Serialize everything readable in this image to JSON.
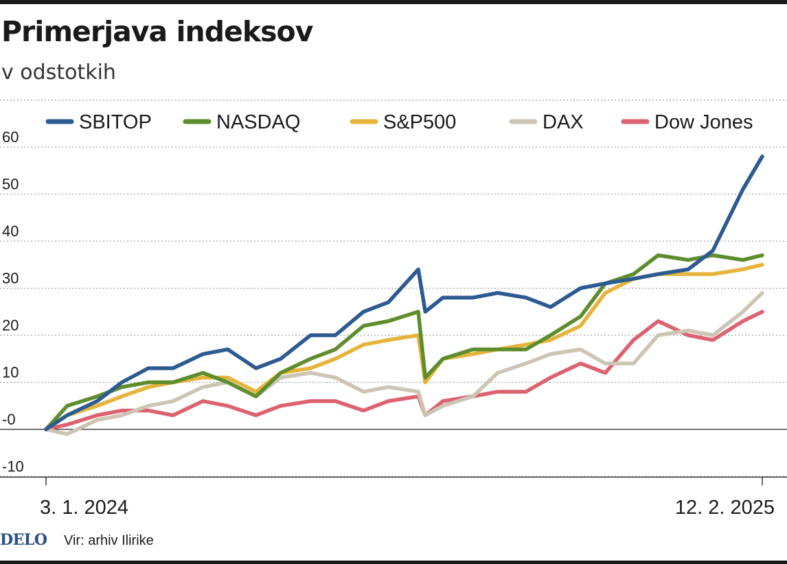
{
  "header": {
    "title": "Primerjava indeksov",
    "subtitle": "v odstotkih"
  },
  "footer": {
    "logo": "DELO",
    "source": "Vir: arhiv Ilirike"
  },
  "colors": {
    "SBITOP": "#2c5a91",
    "NASDAQ": "#5e8d2d",
    "S&P500": "#e6b43a",
    "DAX": "#cdc5b4",
    "Dow Jones": "#dd6270"
  },
  "chart_data": {
    "type": "line",
    "title": "Primerjava indeksov",
    "subtitle": "v odstotkih",
    "xlabel": "",
    "ylabel": "",
    "x_start": "3. 1. 2024",
    "x_end": "12. 2. 2025",
    "x_tick_labels": [
      "3. 1. 2024",
      "12. 2. 2025"
    ],
    "y_ticks": [
      -10,
      0,
      10,
      20,
      30,
      40,
      50,
      60
    ],
    "y_tick_labels": [
      "-10",
      "-0",
      "10",
      "20",
      "30",
      "40",
      "50",
      "60"
    ],
    "ylim": [
      -10,
      63
    ],
    "grid": "horizontal dotted",
    "legend_position": "top",
    "x": [
      "2024-01-03",
      "2024-01-15",
      "2024-02-01",
      "2024-02-15",
      "2024-03-01",
      "2024-03-15",
      "2024-04-01",
      "2024-04-15",
      "2024-05-01",
      "2024-05-15",
      "2024-06-01",
      "2024-06-15",
      "2024-07-01",
      "2024-07-15",
      "2024-08-01",
      "2024-08-05",
      "2024-08-15",
      "2024-09-01",
      "2024-09-15",
      "2024-10-01",
      "2024-10-15",
      "2024-11-01",
      "2024-11-15",
      "2024-12-01",
      "2024-12-15",
      "2025-01-01",
      "2025-01-15",
      "2025-02-01",
      "2025-02-12"
    ],
    "series": [
      {
        "name": "SBITOP",
        "values": [
          0,
          3,
          6,
          10,
          13,
          13,
          16,
          17,
          13,
          15,
          20,
          20,
          25,
          27,
          34,
          25,
          28,
          28,
          29,
          28,
          26,
          30,
          31,
          32,
          33,
          34,
          38,
          51,
          58
        ]
      },
      {
        "name": "NASDAQ",
        "values": [
          0,
          5,
          7,
          9,
          10,
          10,
          12,
          10,
          7,
          12,
          15,
          17,
          22,
          23,
          25,
          11,
          15,
          17,
          17,
          17,
          20,
          24,
          31,
          33,
          37,
          36,
          37,
          36,
          37
        ]
      },
      {
        "name": "S&P500",
        "values": [
          0,
          3,
          5,
          7,
          9,
          10,
          11,
          11,
          8,
          12,
          13,
          15,
          18,
          19,
          20,
          10,
          15,
          16,
          17,
          18,
          19,
          22,
          29,
          32,
          33,
          33,
          33,
          34,
          35
        ]
      },
      {
        "name": "DAX",
        "values": [
          0,
          -1,
          2,
          3,
          5,
          6,
          9,
          10,
          7,
          11,
          12,
          11,
          8,
          9,
          8,
          3,
          5,
          7,
          12,
          14,
          16,
          17,
          14,
          14,
          20,
          21,
          20,
          25,
          29
        ]
      },
      {
        "name": "Dow Jones",
        "values": [
          0,
          1,
          3,
          4,
          4,
          3,
          6,
          5,
          3,
          5,
          6,
          6,
          4,
          6,
          7,
          3,
          6,
          7,
          8,
          8,
          11,
          14,
          12,
          19,
          23,
          20,
          19,
          23,
          25
        ]
      }
    ]
  }
}
